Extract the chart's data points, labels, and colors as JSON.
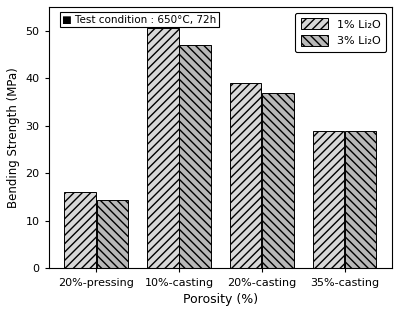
{
  "categories": [
    "20%-pressing",
    "10%-casting",
    "20%-casting",
    "35%-casting"
  ],
  "series": {
    "1% Li₂O": [
      16,
      50.5,
      39,
      29
    ],
    "3% Li₂O": [
      14.5,
      47,
      37,
      29
    ]
  },
  "ylabel": "Bending Strength (MPa)",
  "xlabel": "Porosity (%)",
  "ylim": [
    0,
    55
  ],
  "yticks": [
    0,
    10,
    20,
    30,
    40,
    50
  ],
  "annotation": "Test condition : 650°C, 72h",
  "bar_width": 0.38,
  "hatch1": "////",
  "hatch2": "\\\\\\\\",
  "bar_facecolor1": "#d8d8d8",
  "bar_facecolor2": "#b8b8b8",
  "bar_edge_color": "#000000",
  "legend_labels": [
    "1% Li₂O",
    "3% Li₂O"
  ],
  "figure_bg": "#ffffff"
}
